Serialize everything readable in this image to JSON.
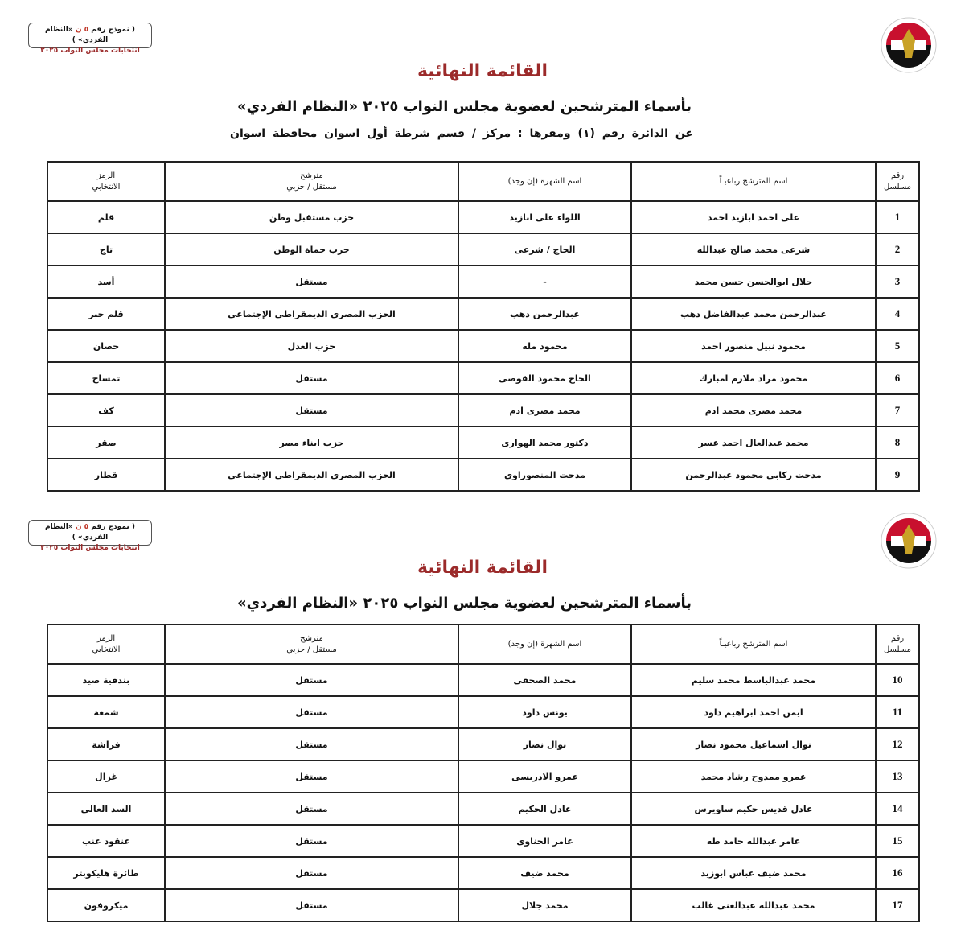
{
  "stamp": {
    "line1_a": "( نموذج رقم ",
    "line1_red": "٥ ن",
    "line1_b": " «النظام الفردي» )",
    "line2": "انتخابات مجلس النواب ٢٠٢٥"
  },
  "logo": {
    "text": "National Election Authority - Egypt",
    "colors": [
      "#c8102e",
      "#ffffff",
      "#000000",
      "#c9a227"
    ]
  },
  "title": "القائمة النهائية",
  "subtitle": "بأسماء المترشحين لعضوية مجلس النواب ٢٠٢٥ «النظام الفردي»",
  "district": "عن الدائرة رقم  (١)   ومقرها : مركز / قسم شرطة  أول اسوان   محافظة  اسوان",
  "title_color": "#9b2a2a",
  "headers": {
    "serial_1": "رقم",
    "serial_2": "مسلسل",
    "name": "اسم المترشح رباعيـاً",
    "fame": "اسم الشهرة (إن وجد)",
    "type_1": "مترشح",
    "type_2": "مستقل / حزبي",
    "symbol_1": "الرمز",
    "symbol_2": "الانتخابي"
  },
  "table1": [
    {
      "n": "1",
      "name": "على احمد ابازيد احمد",
      "fame": "اللواء على ابازيد",
      "type": "حزب مستقبل وطن",
      "symbol": "قلم"
    },
    {
      "n": "2",
      "name": "شرعى محمد صالح عبدالله",
      "fame": "الحاج / شرعى",
      "type": "حزب حماة الوطن",
      "symbol": "تاج"
    },
    {
      "n": "3",
      "name": "جلال ابوالحسن حسن محمد",
      "fame": "-",
      "type": "مستقل",
      "symbol": "أسد"
    },
    {
      "n": "4",
      "name": "عبدالرحمن محمد عبدالفاضل دهب",
      "fame": "عبدالرحمن دهب",
      "type": "الحزب المصرى الديمقراطى الإجتماعى",
      "symbol": "قلم حبر"
    },
    {
      "n": "5",
      "name": "محمود نبيل منصور احمد",
      "fame": "محمود مله",
      "type": "حزب العدل",
      "symbol": "حصان"
    },
    {
      "n": "6",
      "name": "محمود مراد ملازم امبارك",
      "fame": "الحاج محمود القوصى",
      "type": "مستقل",
      "symbol": "تمساح"
    },
    {
      "n": "7",
      "name": "محمد مصرى محمد ادم",
      "fame": "محمد مصرى ادم",
      "type": "مستقل",
      "symbol": "كف"
    },
    {
      "n": "8",
      "name": "محمد عبدالعال احمد عسر",
      "fame": "دكتور محمد الهوارى",
      "type": "حزب ابناء مصر",
      "symbol": "صقر"
    },
    {
      "n": "9",
      "name": "مدحت ركابى محمود عبدالرحمن",
      "fame": "مدحت المنصوراوى",
      "type": "الحزب المصرى الديمقراطى الإجتماعى",
      "symbol": "قطار"
    }
  ],
  "table2": [
    {
      "n": "10",
      "name": "محمد عبدالباسط محمد سليم",
      "fame": "محمد الصحفى",
      "type": "مستقل",
      "symbol": "بندقية صيد"
    },
    {
      "n": "11",
      "name": "ايمن احمد ابراهيم داود",
      "fame": "يونس داود",
      "type": "مستقل",
      "symbol": "شمعة"
    },
    {
      "n": "12",
      "name": "نوال اسماعيل محمود نصار",
      "fame": "نوال نصار",
      "type": "مستقل",
      "symbol": "فراشة"
    },
    {
      "n": "13",
      "name": "عمرو ممدوح رشاد محمد",
      "fame": "عمرو الادريسى",
      "type": "مستقل",
      "symbol": "غزال"
    },
    {
      "n": "14",
      "name": "عادل قديس حكيم ساويرس",
      "fame": "عادل الحكيم",
      "type": "مستقل",
      "symbol": "السد العالى"
    },
    {
      "n": "15",
      "name": "عامر عبدالله حامد طه",
      "fame": "عامر الحناوى",
      "type": "مستقل",
      "symbol": "عنقود عنب"
    },
    {
      "n": "16",
      "name": "محمد ضيف عباس ابوزيد",
      "fame": "محمد ضيف",
      "type": "مستقل",
      "symbol": "طائرة هليكوبتر"
    },
    {
      "n": "17",
      "name": "محمد عبدالله عبدالغنى غالب",
      "fame": "محمد جلال",
      "type": "مستقل",
      "symbol": "ميكروفون"
    }
  ]
}
